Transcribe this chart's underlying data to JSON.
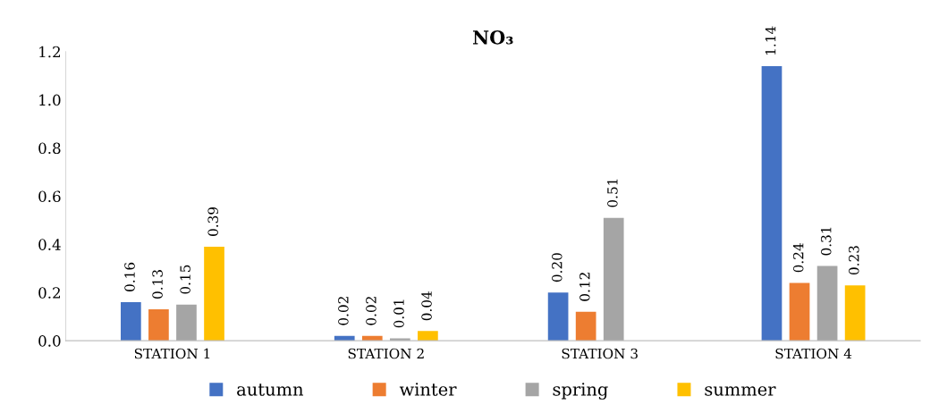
{
  "chart_data": {
    "type": "bar",
    "title": "NO₃",
    "categories": [
      "STATION 1",
      "STATION 2",
      "STATION 3",
      "STATION 4"
    ],
    "series": [
      {
        "name": "autumn",
        "color": "#4472c4",
        "values": [
          0.16,
          0.02,
          0.2,
          1.14
        ],
        "value_labels": [
          "0.16",
          "0.02",
          "0.20",
          "1.14"
        ]
      },
      {
        "name": "winter",
        "color": "#ed7d31",
        "values": [
          0.13,
          0.02,
          0.12,
          0.24
        ],
        "value_labels": [
          "0.13",
          "0.02",
          "0.12",
          "0.24"
        ]
      },
      {
        "name": "spring",
        "color": "#a5a5a5",
        "values": [
          0.15,
          0.01,
          0.51,
          0.31
        ],
        "value_labels": [
          "0.15",
          "0.01",
          "0.51",
          "0.31"
        ]
      },
      {
        "name": "summer",
        "color": "#ffc000",
        "values": [
          0.39,
          0.04,
          null,
          0.23
        ],
        "value_labels": [
          "0.39",
          "0.04",
          null,
          "0.23"
        ]
      }
    ],
    "ylim": [
      0,
      1.2
    ],
    "yticks": [
      {
        "value": 0,
        "label": "0.0"
      },
      {
        "value": 0.2,
        "label": "0.2"
      },
      {
        "value": 0.4,
        "label": "0.4"
      },
      {
        "value": 0.6,
        "label": "0.6"
      },
      {
        "value": 0.8,
        "label": "0.8"
      },
      {
        "value": 1.0,
        "label": "1.0"
      },
      {
        "value": 1.2,
        "label": "1.2"
      }
    ],
    "grid": false,
    "legend": "bottom"
  }
}
